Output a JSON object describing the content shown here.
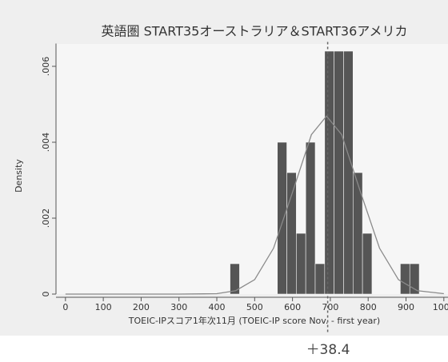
{
  "chart_data": {
    "type": "histogram",
    "title": "英語圏 START35オーストラリア＆START36アメリカ",
    "x_label": "TOEIC-IPスコア1年次11月 (TOEIC-IP score Nov. - first year)",
    "y_label": "Density",
    "bins": [
      435,
      460,
      485,
      510,
      535,
      560,
      585,
      610,
      635,
      660,
      685,
      710,
      735,
      760,
      785,
      810,
      835,
      860,
      885,
      910,
      935
    ],
    "values": [
      0.0008,
      0,
      0,
      0,
      0,
      0.004,
      0.0032,
      0.0016,
      0.004,
      0.0008,
      0.0064,
      0.0064,
      0.0064,
      0.0032,
      0.0016,
      0,
      0,
      0,
      0.0008,
      0.0008
    ],
    "color": "#555555",
    "curve": {
      "color": "#8a8a8a",
      "x": [
        0,
        100,
        200,
        300,
        400,
        450,
        500,
        550,
        600,
        650,
        690,
        730,
        780,
        830,
        880,
        930,
        1000
      ],
      "values": [
        0,
        0,
        0,
        0,
        1e-05,
        9e-05,
        0.00038,
        0.00121,
        0.00268,
        0.0042,
        0.00469,
        0.0042,
        0.00268,
        0.00121,
        0.00038,
        9e-05,
        1e-05
      ]
    },
    "reference_line_x": 693,
    "annotation": "＋38.4",
    "xlim": [
      -25,
      1030
    ],
    "ylim": [
      0,
      0.0066
    ],
    "xticks": [
      0,
      100,
      200,
      300,
      400,
      500,
      600,
      700,
      800,
      900,
      1000
    ],
    "yticks": [
      {
        "value": 0,
        "label": "0"
      },
      {
        "value": 0.002,
        "label": ".002"
      },
      {
        "value": 0.004,
        "label": ".004"
      },
      {
        "value": 0.006,
        "label": ".006"
      }
    ]
  }
}
